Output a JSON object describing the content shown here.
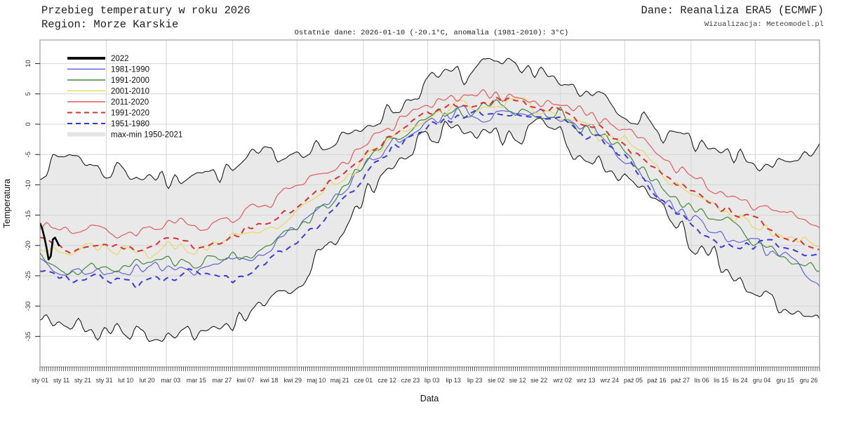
{
  "header": {
    "title": "Przebieg temperatury w roku 2026",
    "region": "Region: Morze Karskie",
    "source": "Dane: Reanaliza ERA5 (ECMWF)",
    "visualization": "Wizualizacja: Meteomodel.pl",
    "last_data": "Ostatnie dane: 2026-01-10 (-20.1°C, anomalia (1981-2010): 3°C)"
  },
  "chart_data": {
    "type": "line",
    "xlabel": "Data",
    "ylabel": "Temperatura",
    "ylim": [
      -40,
      14
    ],
    "yticks": [
      10,
      5,
      0,
      -5,
      -10,
      -15,
      -20,
      -25,
      -30,
      -35
    ],
    "grid": true,
    "legend_position": "top-left",
    "x_ticks": [
      {
        "label": "sty 01",
        "day": 1
      },
      {
        "label": "sty 11",
        "day": 11
      },
      {
        "label": "sty 21",
        "day": 21
      },
      {
        "label": "sty 31",
        "day": 31
      },
      {
        "label": "lut 10",
        "day": 41
      },
      {
        "label": "lut 20",
        "day": 51
      },
      {
        "label": "mar 03",
        "day": 62
      },
      {
        "label": "mar 15",
        "day": 74
      },
      {
        "label": "mar 27",
        "day": 86
      },
      {
        "label": "kwi 07",
        "day": 97
      },
      {
        "label": "kwi 18",
        "day": 108
      },
      {
        "label": "kwi 29",
        "day": 119
      },
      {
        "label": "maj 10",
        "day": 130
      },
      {
        "label": "maj 21",
        "day": 141
      },
      {
        "label": "cze 01",
        "day": 152
      },
      {
        "label": "cze 12",
        "day": 163
      },
      {
        "label": "cze 23",
        "day": 174
      },
      {
        "label": "lip 03",
        "day": 184
      },
      {
        "label": "lip 13",
        "day": 194
      },
      {
        "label": "lip 23",
        "day": 204
      },
      {
        "label": "sie 02",
        "day": 214
      },
      {
        "label": "sie 12",
        "day": 224
      },
      {
        "label": "sie 22",
        "day": 234
      },
      {
        "label": "wrz 02",
        "day": 245
      },
      {
        "label": "wrz 13",
        "day": 256
      },
      {
        "label": "wrz 24",
        "day": 267
      },
      {
        "label": "paź 05",
        "day": 278
      },
      {
        "label": "paź 16",
        "day": 289
      },
      {
        "label": "paź 27",
        "day": 300
      },
      {
        "label": "lis 06",
        "day": 310
      },
      {
        "label": "lis 15",
        "day": 319
      },
      {
        "label": "lis 24",
        "day": 328
      },
      {
        "label": "gru 04",
        "day": 338
      },
      {
        "label": "gru 15",
        "day": 349
      },
      {
        "label": "gru 26",
        "day": 360
      }
    ],
    "month_gridline_days": [
      32,
      60,
      91,
      121,
      152,
      182,
      213,
      244,
      274,
      305,
      335
    ],
    "control_days": [
      1,
      15,
      32,
      46,
      60,
      74,
      91,
      105,
      121,
      135,
      152,
      166,
      182,
      196,
      213,
      227,
      244,
      258,
      274,
      288,
      305,
      319,
      335,
      349,
      365
    ],
    "band": {
      "name": "max-min 1950-2021",
      "fill": "#e9e9e9",
      "edge_color": "#1a1a1a",
      "max": [
        -7.5,
        -5.5,
        -8.5,
        -7,
        -9.5,
        -7.5,
        -8.5,
        -6,
        -4.5,
        -2.5,
        -0.5,
        2.5,
        6.5,
        9,
        8,
        9.5,
        7,
        4.5,
        1.5,
        -0.5,
        -2.5,
        -4.5,
        -6.5,
        -7.5,
        -4.5
      ],
      "min": [
        -31,
        -34,
        -33,
        -34.5,
        -33.5,
        -34.5,
        -34,
        -31,
        -26,
        -21,
        -13,
        -7,
        -2.5,
        -1,
        -0.5,
        -1,
        -2.5,
        -5,
        -9,
        -14,
        -20,
        -24,
        -28,
        -31,
        -33
      ],
      "jitter_max": 1.6,
      "jitter_min": 1.7,
      "seed_max": 7,
      "seed_min": 8
    },
    "series": [
      {
        "name": "2022",
        "color": "#000000",
        "style": "solid",
        "width": 2.6,
        "jitter": 0,
        "seed": 20,
        "days": [
          1,
          2,
          3,
          4,
          5,
          6,
          7,
          8,
          9,
          10
        ],
        "values": [
          -16.3,
          -17.2,
          -18.6,
          -20.3,
          -22.3,
          -21.8,
          -19.0,
          -18.7,
          -19.4,
          -20.1
        ]
      },
      {
        "name": "1981-1990",
        "color": "#6363d9",
        "style": "solid",
        "width": 1.2,
        "jitter": 1.0,
        "seed": 21,
        "values": [
          -22,
          -24.5,
          -23.5,
          -24,
          -23.5,
          -24,
          -22,
          -21,
          -17.5,
          -13.5,
          -7.5,
          -2.5,
          0.5,
          2,
          2.2,
          2,
          1,
          -1.5,
          -5,
          -10.5,
          -15.5,
          -17.5,
          -20,
          -22,
          -26.5
        ]
      },
      {
        "name": "1991-2000",
        "color": "#3e8a3e",
        "style": "solid",
        "width": 1.2,
        "jitter": 1.1,
        "seed": 22,
        "values": [
          -21,
          -25.5,
          -22.5,
          -23,
          -21.5,
          -22.5,
          -21.5,
          -19.5,
          -16.5,
          -12.5,
          -7,
          -2,
          0.8,
          2.2,
          2.4,
          2.2,
          1.2,
          -1,
          -4.5,
          -9.5,
          -13.5,
          -16,
          -18.5,
          -23,
          -24.5
        ]
      },
      {
        "name": "2001-2010",
        "color": "#e8d95e",
        "style": "solid",
        "width": 1.2,
        "jitter": 0.9,
        "seed": 23,
        "values": [
          -19.5,
          -21,
          -20.5,
          -21.5,
          -20,
          -20.5,
          -19,
          -17.5,
          -14.5,
          -11,
          -6,
          -1.5,
          1.2,
          2.8,
          3.2,
          3.5,
          1.8,
          -0.5,
          -3.5,
          -7.5,
          -11.5,
          -14,
          -16.5,
          -18.5,
          -20
        ]
      },
      {
        "name": "2011-2020",
        "color": "#e05c5c",
        "style": "solid",
        "width": 1.2,
        "jitter": 0.9,
        "seed": 24,
        "values": [
          -16.5,
          -17.5,
          -17.5,
          -18.5,
          -17,
          -16.5,
          -15.5,
          -13.5,
          -10.5,
          -7.5,
          -3.5,
          0.5,
          3,
          4.8,
          5,
          4.5,
          3.5,
          1.5,
          -1,
          -4.5,
          -8,
          -11,
          -13,
          -14,
          -16.5
        ]
      },
      {
        "name": "1991-2020",
        "color": "#d93030",
        "style": "dashed",
        "width": 2.0,
        "jitter": 0.6,
        "seed": 25,
        "values": [
          -19,
          -21,
          -20,
          -21,
          -19.5,
          -20,
          -18.5,
          -17,
          -14,
          -10.5,
          -5.5,
          -1,
          1.7,
          3.3,
          3.5,
          3.4,
          2.2,
          0,
          -3,
          -7,
          -11,
          -13.5,
          -16,
          -18.5,
          -20.5
        ]
      },
      {
        "name": "1951-1980",
        "color": "#3a3ae0",
        "style": "dashed",
        "width": 2.0,
        "jitter": 0.7,
        "seed": 26,
        "values": [
          -24,
          -26,
          -25.5,
          -26,
          -25,
          -24.5,
          -25,
          -22.5,
          -19.5,
          -15,
          -9,
          -4,
          -0.5,
          1.2,
          1.8,
          1.5,
          0.5,
          -2,
          -5.5,
          -11,
          -17,
          -19.5,
          -19.5,
          -20.5,
          -22.5
        ]
      }
    ],
    "legend_entries": [
      "2022",
      "1981-1990",
      "1991-2000",
      "2001-2010",
      "2011-2020",
      "1991-2020",
      "1951-1980",
      "max-min 1950-2021"
    ],
    "colors": {
      "grid": "#d4d4d4",
      "box": "#8a8a8a",
      "tick": "#222222",
      "tick_label": "#333333",
      "axis_title": "#111111"
    }
  }
}
